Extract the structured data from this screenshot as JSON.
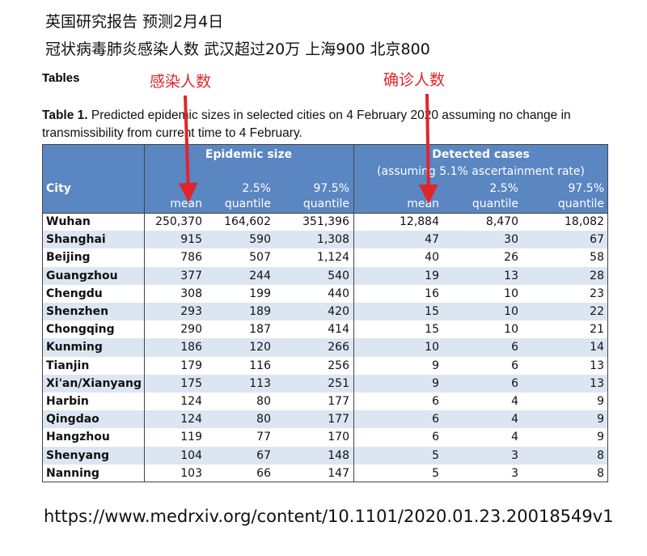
{
  "header": {
    "line1": "英国研究报告  预测2月4日",
    "line2": "冠状病毒肺炎感染人数  武汉超过20万 上海900 北京800"
  },
  "section": "Tables",
  "annotations": [
    "感染人数",
    "确诊人数"
  ],
  "caption": {
    "label": "Table 1.",
    "text": "Predicted epidemic sizes in selected cities on 4 February 2020 assuming no change in transmissibility from current time to 4 February."
  },
  "table": {
    "city_header": "City",
    "groups": [
      {
        "title": "Epidemic size"
      },
      {
        "title": "Detected cases",
        "subtitle": "(assuming 5.1% ascertainment rate)"
      }
    ],
    "columns": [
      {
        "bottom": "mean"
      },
      {
        "top": "2.5%",
        "bottom": "quantile"
      },
      {
        "top": "97.5%",
        "bottom": "quantile"
      },
      {
        "bottom": "mean"
      },
      {
        "top": "2.5%",
        "bottom": "quantile"
      },
      {
        "top": "97.5%",
        "bottom": "quantile"
      }
    ],
    "rows": [
      [
        "Wuhan",
        "250,370",
        "164,602",
        "351,396",
        "12,884",
        "8,470",
        "18,082"
      ],
      [
        "Shanghai",
        "915",
        "590",
        "1,308",
        "47",
        "30",
        "67"
      ],
      [
        "Beijing",
        "786",
        "507",
        "1,124",
        "40",
        "26",
        "58"
      ],
      [
        "Guangzhou",
        "377",
        "244",
        "540",
        "19",
        "13",
        "28"
      ],
      [
        "Chengdu",
        "308",
        "199",
        "440",
        "16",
        "10",
        "23"
      ],
      [
        "Shenzhen",
        "293",
        "189",
        "420",
        "15",
        "10",
        "22"
      ],
      [
        "Chongqing",
        "290",
        "187",
        "414",
        "15",
        "10",
        "21"
      ],
      [
        "Kunming",
        "186",
        "120",
        "266",
        "10",
        "6",
        "14"
      ],
      [
        "Tianjin",
        "179",
        "116",
        "256",
        "9",
        "6",
        "13"
      ],
      [
        "Xi'an/Xianyang",
        "175",
        "113",
        "251",
        "9",
        "6",
        "13"
      ],
      [
        "Harbin",
        "124",
        "80",
        "177",
        "6",
        "4",
        "9"
      ],
      [
        "Qingdao",
        "124",
        "80",
        "177",
        "6",
        "4",
        "9"
      ],
      [
        "Hangzhou",
        "119",
        "77",
        "170",
        "6",
        "4",
        "9"
      ],
      [
        "Shenyang",
        "104",
        "67",
        "148",
        "5",
        "3",
        "8"
      ],
      [
        "Nanning",
        "103",
        "66",
        "147",
        "5",
        "3",
        "8"
      ]
    ]
  },
  "footer_url": "https://www.medrxiv.org/content/10.1101/2020.01.23.20018549v1"
}
